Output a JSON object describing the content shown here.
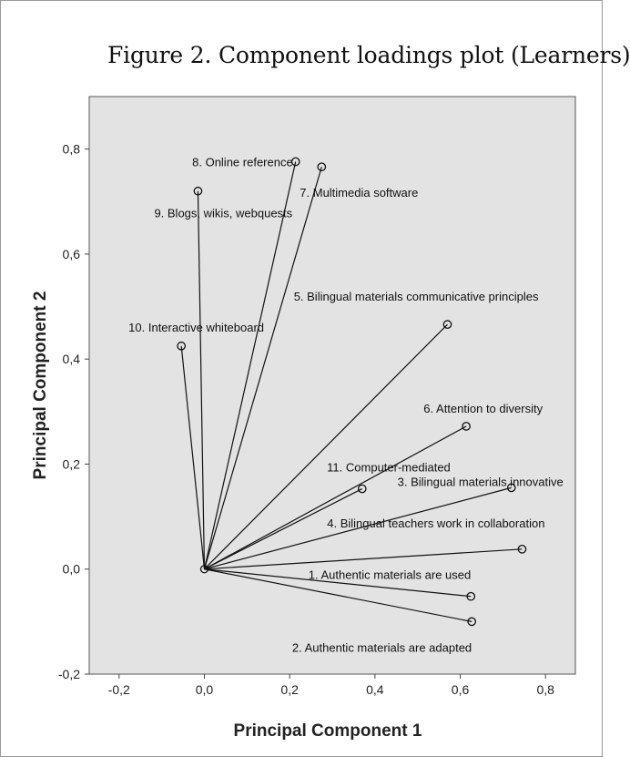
{
  "figure_title": "Figure 2. Component loadings plot (Learners)",
  "chart_data": {
    "type": "scatter",
    "title": "Figure 2. Component loadings plot (Learners)",
    "xlabel": "Principal Component 1",
    "ylabel": "Principal Component 2",
    "xlim": [
      -0.27,
      0.87
    ],
    "ylim": [
      -0.2,
      0.9
    ],
    "x_ticks": [
      "-0,2",
      "0,0",
      "0,2",
      "0,4",
      "0,6",
      "0,8"
    ],
    "y_ticks": [
      "-0,2",
      "0,0",
      "0,2",
      "0,4",
      "0,6",
      "0,8"
    ],
    "grid": false,
    "background": "#e3e3e3",
    "origin": [
      0,
      0
    ],
    "points": [
      {
        "label": "1. Authentic materials are used",
        "x": 0.625,
        "y": -0.052
      },
      {
        "label": "2. Authentic materials are adapted",
        "x": 0.627,
        "y": -0.1
      },
      {
        "label": "3. Bilingual materials innovative",
        "x": 0.72,
        "y": 0.155
      },
      {
        "label": "4. Bilingual teachers work in collaboration",
        "x": 0.745,
        "y": 0.038
      },
      {
        "label": "5. Bilingual materials communicative principles",
        "x": 0.57,
        "y": 0.466
      },
      {
        "label": "6. Attention to diversity",
        "x": 0.614,
        "y": 0.272
      },
      {
        "label": "7. Multimedia software",
        "x": 0.275,
        "y": 0.766
      },
      {
        "label": "8. Online reference",
        "x": 0.214,
        "y": 0.776
      },
      {
        "label": "9. Blogs, wikis, webquests",
        "x": -0.015,
        "y": 0.72
      },
      {
        "label": "10. Interactive whiteboard",
        "x": -0.054,
        "y": 0.425
      },
      {
        "label": "11. Computer-mediated",
        "x": 0.37,
        "y": 0.153
      }
    ]
  }
}
